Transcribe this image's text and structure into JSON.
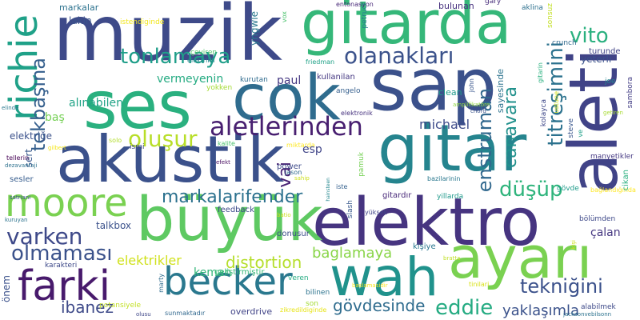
{
  "words": [
    {
      "text": "muzik",
      "color": "#3e4a89"
    },
    {
      "text": "gitarda",
      "color": "#35b779"
    },
    {
      "text": "sap",
      "color": "#3b518b"
    },
    {
      "text": "aleti",
      "color": "#404387"
    },
    {
      "text": "ses",
      "color": "#2ab07f"
    },
    {
      "text": "cok",
      "color": "#2f6c8e"
    },
    {
      "text": "akustik",
      "color": "#3b518b"
    },
    {
      "text": "gitar",
      "color": "#25848e"
    },
    {
      "text": "elektro",
      "color": "#463480"
    },
    {
      "text": "büyük",
      "color": "#5ec962"
    },
    {
      "text": "ayarı",
      "color": "#7ad151"
    },
    {
      "text": "wah",
      "color": "#20928c"
    },
    {
      "text": "becker",
      "color": "#2a788e"
    },
    {
      "text": "farki",
      "color": "#481a6c"
    },
    {
      "text": "moore",
      "color": "#7ad151"
    },
    {
      "text": "richie",
      "color": "#1fa188"
    },
    {
      "text": "tonlamaya",
      "color": "#1f9e89"
    },
    {
      "text": "olanakları",
      "color": "#3b528b"
    },
    {
      "text": "vito",
      "color": "#2ab07f"
    },
    {
      "text": "titreşimini",
      "color": "#2c728e"
    },
    {
      "text": "aletlerinden",
      "color": "#481f70"
    },
    {
      "text": "markalarifender",
      "color": "#2c718e"
    },
    {
      "text": "düşüp",
      "color": "#2fb47c"
    },
    {
      "text": "varken",
      "color": "#3e4989"
    },
    {
      "text": "olmaması",
      "color": "#3b528b"
    },
    {
      "text": "tekbaşına",
      "color": "#355f8d"
    },
    {
      "text": "enstruman",
      "color": "#31688e"
    },
    {
      "text": "canavara",
      "color": "#21918c"
    },
    {
      "text": "oluşur",
      "color": "#b8de29"
    },
    {
      "text": "tekniğini",
      "color": "#3b518b"
    },
    {
      "text": "eddie",
      "color": "#25ab82"
    },
    {
      "text": "distortion",
      "color": "#b5de2b"
    },
    {
      "text": "ibanez",
      "color": "#3e4a89"
    },
    {
      "text": "gövdesinde",
      "color": "#2f6c8e"
    },
    {
      "text": "yaklaşımla",
      "color": "#3b528b"
    },
    {
      "text": "vai",
      "color": "#482374"
    },
    {
      "text": "michael",
      "color": "#3e4c8a"
    },
    {
      "text": "baglamaya",
      "color": "#89d548"
    },
    {
      "text": "keman",
      "color": "#32b67a"
    },
    {
      "text": "elektrikler",
      "color": "#d0e11c"
    },
    {
      "text": "vermeyenin",
      "color": "#25ab82"
    },
    {
      "text": "alınabilen",
      "color": "#20a386"
    },
    {
      "text": "markalar",
      "color": "#2c728e"
    },
    {
      "text": "lakin",
      "color": "#3a548c"
    },
    {
      "text": "istendiginde",
      "color": "#f1e51d"
    },
    {
      "text": "entonasyon",
      "color": "#482878"
    },
    {
      "text": "petruci",
      "color": "#287d8e"
    },
    {
      "text": "gary",
      "color": "#472d7b"
    },
    {
      "text": "aklina",
      "color": "#2d708e"
    },
    {
      "text": "sonsuz",
      "color": "#c2df23"
    },
    {
      "text": "bulunan",
      "color": "#46307e"
    },
    {
      "text": "paul",
      "color": "#453882"
    },
    {
      "text": "ibanez",
      "color": "#3e4a89"
    },
    {
      "text": "yngwie",
      "color": "#2a788e"
    },
    {
      "text": "vox",
      "color": "#4ac16d"
    },
    {
      "text": "friedman",
      "color": "#1fa187"
    },
    {
      "text": "çeviren",
      "color": "#52c569"
    },
    {
      "text": "elektrikli",
      "color": "#25848e"
    },
    {
      "text": "yetkileri",
      "color": "#2e6e8e"
    },
    {
      "text": "yetki",
      "color": "#2e6e8e"
    },
    {
      "text": "crunch",
      "color": "#306a8e"
    },
    {
      "text": "gitarin",
      "color": "#2ab07f"
    },
    {
      "text": "turunde",
      "color": "#414487"
    },
    {
      "text": "yetkili",
      "color": "#3e4a89"
    },
    {
      "text": "yetkin",
      "color": "#3e4a89"
    },
    {
      "text": "yetkinlik",
      "color": "#3e4a89"
    },
    {
      "text": "yetkiliye",
      "color": "#3e4a89"
    },
    {
      "text": "yetkileri",
      "color": "#3e4a89"
    },
    {
      "text": "kullanilan",
      "color": "#453882"
    },
    {
      "text": "kurutan",
      "color": "#2f6b8e"
    },
    {
      "text": "yokken",
      "color": "#a5db36"
    },
    {
      "text": "angelo",
      "color": "#355f8d"
    },
    {
      "text": "sayesinde",
      "color": "#2c738e"
    },
    {
      "text": "clean",
      "color": "#1f9a8a"
    },
    {
      "text": "john",
      "color": "#39568c"
    },
    {
      "text": "kolayca",
      "color": "#3f4889"
    },
    {
      "text": "ustune",
      "color": "#d2e21b"
    },
    {
      "text": "joe",
      "color": "#25838e"
    },
    {
      "text": "sambora",
      "color": "#433e85"
    },
    {
      "text": "getiren",
      "color": "#a8db34"
    },
    {
      "text": "elinde",
      "color": "#2a788e"
    },
    {
      "text": "elektronik",
      "color": "#46327e"
    },
    {
      "text": "amplifikatöre",
      "color": "#90d743"
    },
    {
      "text": "chord",
      "color": "#3a538b"
    },
    {
      "text": "steve",
      "color": "#39568c"
    },
    {
      "text": "ve",
      "color": "#1fa088"
    },
    {
      "text": "manyetikler",
      "color": "#453882"
    },
    {
      "text": "baş",
      "color": "#75d054"
    },
    {
      "text": "elektriğe",
      "color": "#3b518b"
    },
    {
      "text": "solo",
      "color": "#b2dd2d"
    },
    {
      "text": "ismi",
      "color": "#3f4889"
    },
    {
      "text": "gilbert",
      "color": "#f4e61e"
    },
    {
      "text": "kalite",
      "color": "#4ac16d"
    },
    {
      "text": "miktarda",
      "color": "#fde725"
    },
    {
      "text": "esp",
      "color": "#404588"
    },
    {
      "text": "sert",
      "color": "#38588c"
    },
    {
      "text": "tellerin",
      "color": "#440154"
    },
    {
      "text": "dezavantaji",
      "color": "#2d718e"
    },
    {
      "text": "efekt",
      "color": "#470d60"
    },
    {
      "text": "pamuk",
      "color": "#75d054"
    },
    {
      "text": "sesler",
      "color": "#365c8d"
    },
    {
      "text": "power",
      "color": "#3e4a89"
    },
    {
      "text": "jason",
      "color": "#2f6b8e"
    },
    {
      "text": "sahip",
      "color": "#cde11d"
    },
    {
      "text": "hainsteen",
      "color": "#24878e"
    },
    {
      "text": "iste",
      "color": "#34608d"
    },
    {
      "text": "bazilarinin",
      "color": "#2a788e"
    },
    {
      "text": "gitardır",
      "color": "#482979"
    },
    {
      "text": "yillarda",
      "color": "#1f998a"
    },
    {
      "text": "gövde",
      "color": "#1e9b8a"
    },
    {
      "text": "bağlandığında",
      "color": "#fde725"
    },
    {
      "text": "cikan",
      "color": "#29af7f"
    },
    {
      "text": "satriani",
      "color": "#3b518b"
    },
    {
      "text": "feedback",
      "color": "#3e4c8a"
    },
    {
      "text": "slash",
      "color": "#38588c"
    },
    {
      "text": "yüksek",
      "color": "#404387"
    },
    {
      "text": "batio",
      "color": "#cde11d"
    },
    {
      "text": "bölümden",
      "color": "#3e4989"
    },
    {
      "text": "kuruyan",
      "color": "#2c738e"
    },
    {
      "text": "talkbox",
      "color": "#3b518b"
    },
    {
      "text": "çalan",
      "color": "#453781"
    },
    {
      "text": "kişi",
      "color": "#cde11d"
    },
    {
      "text": "bratta",
      "color": "#c0df25"
    },
    {
      "text": "kişiye",
      "color": "#2a778e"
    },
    {
      "text": "geliştirmiştir",
      "color": "#38b977"
    },
    {
      "text": "veren",
      "color": "#25ac82"
    },
    {
      "text": "önem",
      "color": "#3b518b"
    },
    {
      "text": "karakteri",
      "color": "#3e4a89"
    },
    {
      "text": "marty",
      "color": "#2f6c8e"
    },
    {
      "text": "potansiyele",
      "color": "#c2df23"
    },
    {
      "text": "bilinen",
      "color": "#2c738e"
    },
    {
      "text": "son",
      "color": "#a5db36"
    },
    {
      "text": "overdrive",
      "color": "#414487"
    },
    {
      "text": "sunmaktadır",
      "color": "#31688e"
    },
    {
      "text": "olusu",
      "color": "#3f4788"
    },
    {
      "text": "zikredildiginde",
      "color": "#e7e419"
    },
    {
      "text": "jacksonvebilsonn",
      "color": "#2c728e"
    },
    {
      "text": "alabilmek",
      "color": "#3e4a89"
    },
    {
      "text": "tinilari",
      "color": "#d8e219"
    },
    {
      "text": "baslamasidir",
      "color": "#f8e621"
    },
    {
      "text": "donusur",
      "color": "#3d4e8a"
    },
    {
      "text": "yetkili",
      "color": "#3b528b"
    },
    {
      "text": "yeterli",
      "color": "#3b528b"
    }
  ]
}
